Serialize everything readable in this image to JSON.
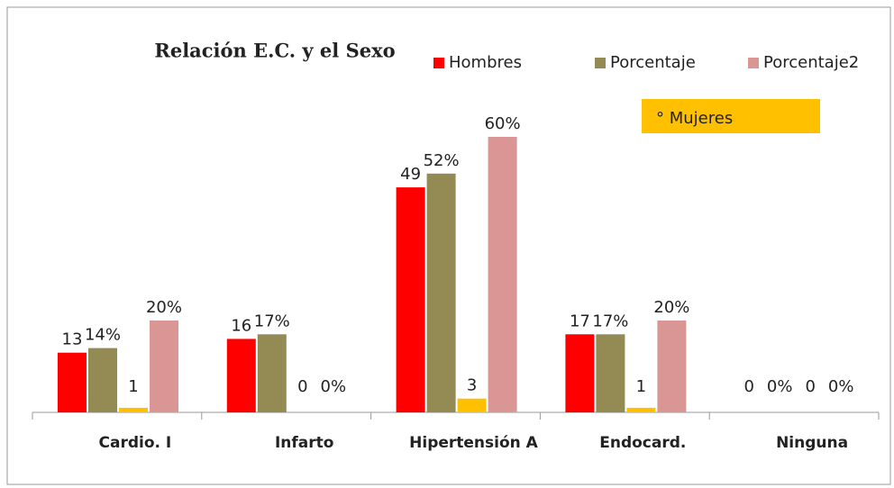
{
  "chart_data": {
    "type": "bar",
    "title": "Relación E.C. y el Sexo",
    "categories": [
      "Cardio. I",
      "Infarto",
      "Hipertensión A",
      "Endocard.",
      "Ninguna"
    ],
    "series": [
      {
        "name": "Hombres",
        "color": "#ff0000",
        "values": [
          13,
          16,
          49,
          17,
          0
        ]
      },
      {
        "name": "Porcentaje",
        "color": "#948a54",
        "values": [
          14,
          17,
          52,
          17,
          0
        ],
        "value_labels": [
          "14%",
          "17%",
          "52%",
          "17%",
          "0%"
        ]
      },
      {
        "name": "° Mujeres",
        "color": "#ffc000",
        "values": [
          1,
          0,
          3,
          1,
          0
        ]
      },
      {
        "name": "Porcentaje2",
        "color": "#d99694",
        "values": [
          20,
          0,
          60,
          20,
          0
        ],
        "value_labels": [
          "20%",
          "0%",
          "60%",
          "20%",
          "0%"
        ]
      }
    ]
  }
}
